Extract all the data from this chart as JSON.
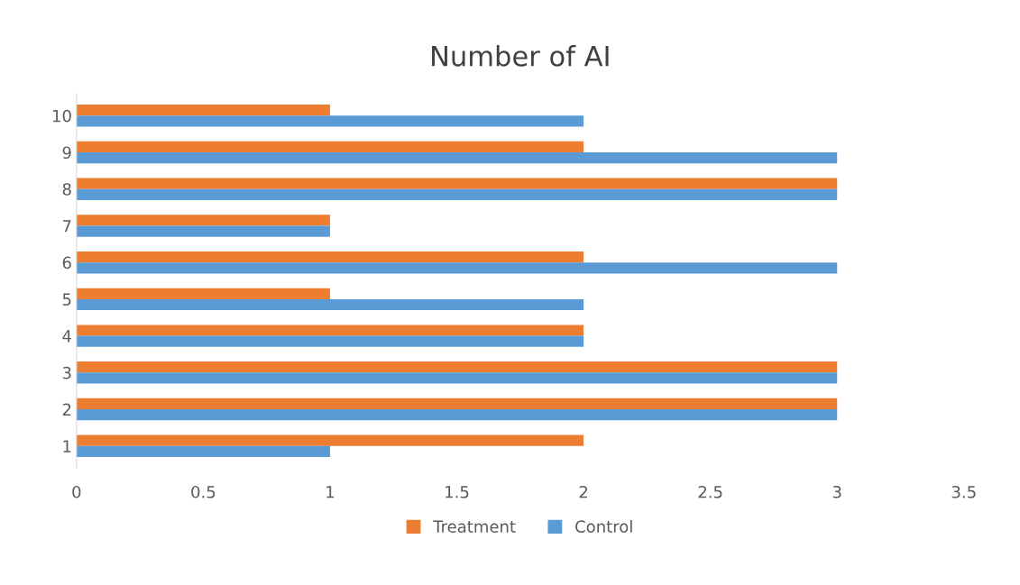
{
  "chart_data": {
    "type": "bar",
    "orientation": "horizontal",
    "title": "Number of AI",
    "categories": [
      "10",
      "9",
      "8",
      "7",
      "6",
      "5",
      "4",
      "3",
      "2",
      "1"
    ],
    "series": [
      {
        "name": "Treatment",
        "color": "#ed7d31",
        "values": [
          1,
          2,
          3,
          1,
          2,
          1,
          2,
          3,
          3,
          2
        ]
      },
      {
        "name": "Control",
        "color": "#5b9bd5",
        "values": [
          2,
          3,
          3,
          1,
          3,
          2,
          2,
          3,
          3,
          1
        ]
      }
    ],
    "xlim": [
      0,
      3.5
    ],
    "xticks": [
      0,
      0.5,
      1,
      1.5,
      2,
      2.5,
      3,
      3.5
    ],
    "grid": false,
    "legend": "bottom"
  }
}
